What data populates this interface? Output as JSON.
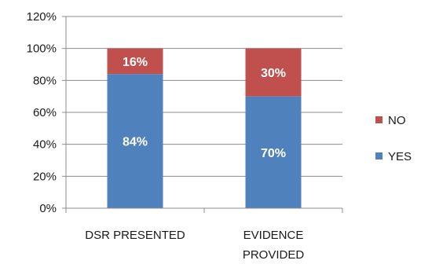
{
  "chart_data": {
    "type": "bar",
    "stacked": true,
    "categories": [
      [
        "DSR PRESENTED"
      ],
      [
        "EVIDENCE",
        "PROVIDED"
      ]
    ],
    "series": [
      {
        "name": "YES",
        "values": [
          84,
          70
        ],
        "labels": [
          "84%",
          "70%"
        ],
        "color": "#4f81bd"
      },
      {
        "name": "NO",
        "values": [
          16,
          30
        ],
        "labels": [
          "16%",
          "30%"
        ],
        "color": "#c0504d"
      }
    ],
    "ylim": [
      0,
      120
    ],
    "yticks": [
      0,
      20,
      40,
      60,
      80,
      100,
      120
    ],
    "ytick_labels": [
      "0%",
      "20%",
      "40%",
      "60%",
      "80%",
      "100%",
      "120%"
    ],
    "grid": true,
    "legend": {
      "position": "right",
      "order": [
        "NO",
        "YES"
      ]
    }
  }
}
